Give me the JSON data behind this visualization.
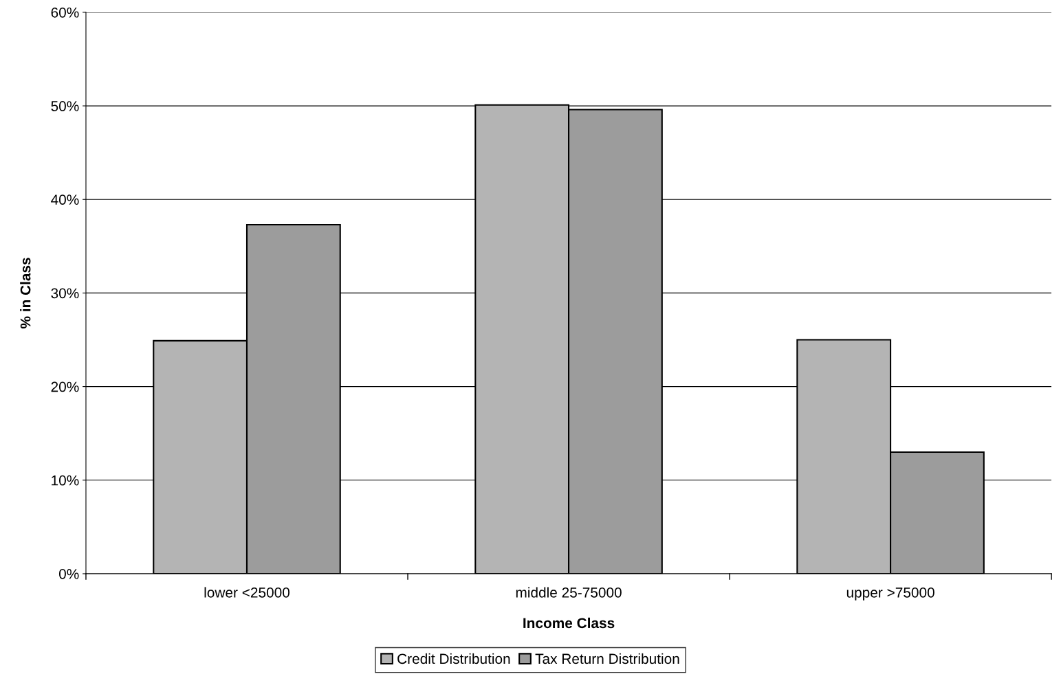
{
  "chart_data": {
    "type": "bar",
    "xlabel": "Income Class",
    "ylabel": "% in Class",
    "categories": [
      "lower <25000",
      "middle 25-75000",
      "upper >75000"
    ],
    "series": [
      {
        "name": "Credit Distribution",
        "color": "#b4b4b4",
        "values": [
          24.9,
          50.1,
          25.0
        ]
      },
      {
        "name": "Tax Return Distribution",
        "color": "#9c9c9c",
        "values": [
          37.3,
          49.6,
          13.0
        ]
      }
    ],
    "ylim": [
      0,
      60
    ],
    "yticks": [
      {
        "value": 0,
        "label": "0%"
      },
      {
        "value": 10,
        "label": "10%"
      },
      {
        "value": 20,
        "label": "20%"
      },
      {
        "value": 30,
        "label": "30%"
      },
      {
        "value": 40,
        "label": "40%"
      },
      {
        "value": 50,
        "label": "50%"
      },
      {
        "value": 60,
        "label": "60%"
      }
    ],
    "grid": "y",
    "legend": "bottom"
  }
}
